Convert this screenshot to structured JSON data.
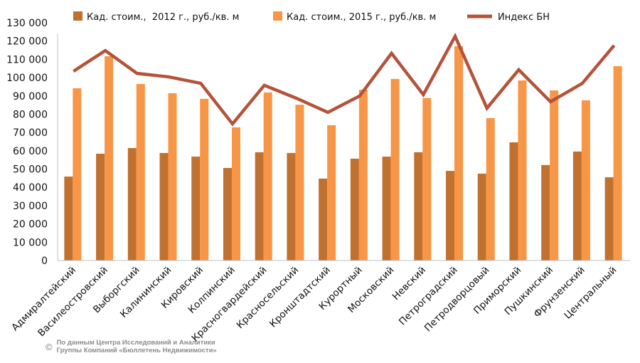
{
  "chart_data": {
    "type": "bar",
    "title": "",
    "xlabel": "",
    "ylabel": "",
    "ylim": [
      0,
      130000
    ],
    "yticks": [
      0,
      10000,
      20000,
      30000,
      40000,
      50000,
      60000,
      70000,
      80000,
      90000,
      100000,
      110000,
      120000,
      130000
    ],
    "ytick_labels": [
      "0",
      "10 000",
      "20 000",
      "30 000",
      "40 000",
      "50 000",
      "60 000",
      "70 000",
      "80 000",
      "90 000",
      "100 000",
      "110 000",
      "120 000",
      "130 000"
    ],
    "grid": false,
    "legend_position": "top",
    "categories": [
      "Адмиралтейский",
      "Василеостровский",
      "Выборгский",
      "Калининский",
      "Кировский",
      "Колпинский",
      "Красногвардейский",
      "Красносельский",
      "Кронштадтский",
      "Курортный",
      "Московский",
      "Невский",
      "Петроградский",
      "Петродворцовый",
      "Приморский",
      "Пушкинский",
      "Фрунзенский",
      "Центральный"
    ],
    "series": [
      {
        "name": "Кад. стоим.,  2012 г., руб./кв. м",
        "type": "bar",
        "color": "#c0712f",
        "values": [
          45900,
          58400,
          61500,
          58800,
          56800,
          50600,
          59200,
          58800,
          44800,
          55700,
          56800,
          59200,
          49000,
          47500,
          64600,
          52200,
          59600,
          45500
        ]
      },
      {
        "name": "Кад. стоим., 2015 г., руб./кв. м",
        "type": "bar",
        "color": "#f79646",
        "values": [
          94200,
          111700,
          96500,
          91500,
          88400,
          72800,
          91900,
          85200,
          74000,
          93400,
          99300,
          88800,
          117200,
          77900,
          98500,
          93000,
          87600,
          106300
        ]
      },
      {
        "name": "Индекс БН",
        "type": "line",
        "color": "#b4533a",
        "values": [
          103500,
          114800,
          102300,
          100400,
          96900,
          74700,
          95800,
          88800,
          81000,
          90000,
          113300,
          90700,
          122600,
          83300,
          104300,
          86800,
          96900,
          117600
        ]
      }
    ]
  },
  "footnote": {
    "copyright_symbol": "©",
    "line1": "По данным Центра Исследований и Аналитики",
    "line2": "Группы Компаний «Бюллетень Недвижимости»"
  }
}
